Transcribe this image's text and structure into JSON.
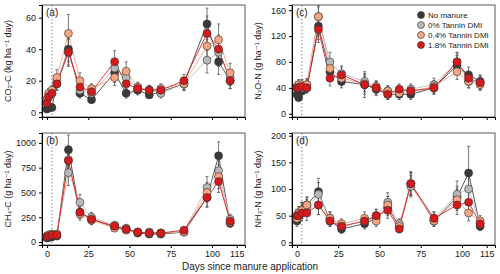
{
  "figure": {
    "x_label": "Days since manure application"
  },
  "chart_data": [
    {
      "type": "line",
      "title": "(a)",
      "y_label": "CO₂-C (kg ha⁻¹ day)",
      "marker": "circle",
      "tick_labels": "y",
      "x": [
        0,
        1,
        3,
        6,
        13,
        20,
        27,
        41,
        48,
        55,
        62,
        69,
        83,
        97,
        104,
        111
      ],
      "xlim": [
        -3,
        120
      ],
      "xticks": [
        0,
        25,
        50,
        75,
        100,
        115
      ],
      "ylim": [
        -3,
        68
      ],
      "yticks": [
        0,
        20,
        40,
        60
      ],
      "vline": 3,
      "series": [
        {
          "name": "No manure",
          "color": "#3a3a3a",
          "values": [
            2,
            3,
            3,
            18,
            40,
            12,
            8,
            25,
            12,
            14,
            11,
            13,
            18,
            56,
            32,
            20
          ],
          "errors": [
            1,
            1,
            1,
            4,
            8,
            3,
            2,
            6,
            3,
            3,
            2,
            3,
            4,
            10,
            8,
            5
          ]
        },
        {
          "name": "0% Tannin DMI",
          "color": "#b8b8b8",
          "values": [
            8,
            10,
            12,
            20,
            38,
            14,
            12,
            28,
            22,
            15,
            14,
            12,
            18,
            33,
            38,
            22
          ],
          "errors": [
            2,
            3,
            3,
            4,
            9,
            4,
            3,
            6,
            5,
            3,
            3,
            3,
            4,
            8,
            9,
            5
          ]
        },
        {
          "name": "0.4% Tannin DMI",
          "color": "#f4a582",
          "values": [
            8,
            12,
            14,
            22,
            50,
            20,
            15,
            22,
            26,
            16,
            14,
            15,
            18,
            42,
            46,
            25
          ],
          "errors": [
            2,
            3,
            3,
            5,
            12,
            5,
            3,
            5,
            6,
            3,
            3,
            3,
            4,
            10,
            10,
            6
          ]
        },
        {
          "name": "1.8% Tannin DMI",
          "color": "#d7191c",
          "values": [
            6,
            10,
            12,
            18,
            38,
            16,
            13,
            32,
            18,
            15,
            14,
            14,
            20,
            50,
            40,
            20
          ],
          "errors": [
            2,
            2,
            3,
            4,
            8,
            4,
            3,
            7,
            4,
            3,
            3,
            3,
            4,
            11,
            9,
            5
          ]
        }
      ]
    },
    {
      "type": "line",
      "title": "(b)",
      "y_label": "CH₄-C (g ha⁻¹ day)",
      "marker": "circle",
      "tick_labels": true,
      "x": [
        0,
        1,
        3,
        6,
        13,
        20,
        27,
        41,
        48,
        55,
        62,
        69,
        83,
        97,
        104,
        111
      ],
      "xlim": [
        -3,
        120
      ],
      "xticks": [
        0,
        25,
        50,
        75,
        100,
        115
      ],
      "ylim": [
        -30,
        1100
      ],
      "yticks": [
        0,
        250,
        500,
        750,
        1000
      ],
      "vline": 3,
      "series": [
        {
          "name": "No manure",
          "color": "#3a3a3a",
          "values": [
            40,
            45,
            50,
            60,
            930,
            300,
            230,
            150,
            130,
            90,
            80,
            80,
            100,
            450,
            870,
            190
          ],
          "errors": [
            10,
            10,
            10,
            15,
            150,
            60,
            50,
            30,
            30,
            20,
            20,
            20,
            25,
            100,
            140,
            40
          ]
        },
        {
          "name": "0% Tannin DMI",
          "color": "#b8b8b8",
          "values": [
            60,
            70,
            80,
            80,
            700,
            400,
            250,
            170,
            140,
            100,
            100,
            90,
            110,
            550,
            720,
            230
          ],
          "errors": [
            15,
            15,
            15,
            20,
            130,
            80,
            50,
            35,
            30,
            25,
            20,
            20,
            25,
            110,
            130,
            50
          ]
        },
        {
          "name": "0.4% Tannin DMI",
          "color": "#f4a582",
          "values": [
            60,
            70,
            75,
            80,
            830,
            280,
            220,
            140,
            120,
            100,
            90,
            90,
            100,
            500,
            660,
            200
          ],
          "errors": [
            15,
            15,
            15,
            20,
            140,
            60,
            45,
            30,
            25,
            20,
            20,
            20,
            25,
            100,
            120,
            45
          ]
        },
        {
          "name": "1.8% Tannin DMI",
          "color": "#d7191c",
          "values": [
            50,
            60,
            70,
            70,
            820,
            300,
            230,
            160,
            130,
            100,
            90,
            90,
            120,
            450,
            610,
            210
          ],
          "errors": [
            10,
            15,
            15,
            15,
            140,
            60,
            50,
            35,
            30,
            20,
            20,
            20,
            25,
            90,
            110,
            45
          ]
        }
      ]
    },
    {
      "type": "line",
      "title": "(c)",
      "y_label": "N₂O-N (g ha⁻¹ day)",
      "marker": "circle",
      "tick_labels": "y",
      "legend": "top-right",
      "x": [
        0,
        1,
        3,
        6,
        13,
        20,
        27,
        41,
        48,
        55,
        62,
        69,
        83,
        97,
        104,
        111
      ],
      "xlim": [
        -3,
        120
      ],
      "xticks": [
        0,
        25,
        50,
        75,
        100,
        115
      ],
      "ylim": [
        -5,
        168
      ],
      "yticks": [
        0,
        40,
        80,
        120,
        160
      ],
      "vline": 3,
      "series": [
        {
          "name": "No manure",
          "color": "#3a3a3a",
          "values": [
            30,
            25,
            35,
            40,
            135,
            65,
            50,
            45,
            38,
            30,
            30,
            30,
            40,
            75,
            60,
            50
          ],
          "errors": [
            6,
            5,
            6,
            8,
            20,
            12,
            10,
            15,
            10,
            8,
            8,
            8,
            10,
            15,
            12,
            10
          ]
        },
        {
          "name": "0% Tannin DMI",
          "color": "#b8b8b8",
          "values": [
            40,
            42,
            40,
            45,
            150,
            80,
            62,
            50,
            40,
            35,
            35,
            38,
            45,
            80,
            50,
            48
          ],
          "errors": [
            8,
            8,
            8,
            9,
            18,
            15,
            12,
            12,
            10,
            8,
            8,
            8,
            10,
            14,
            10,
            10
          ]
        },
        {
          "name": "0.4% Tannin DMI",
          "color": "#f4a582",
          "values": [
            42,
            45,
            45,
            45,
            150,
            70,
            55,
            46,
            42,
            35,
            32,
            35,
            42,
            65,
            50,
            45
          ],
          "errors": [
            8,
            8,
            8,
            9,
            15,
            14,
            11,
            12,
            9,
            8,
            7,
            8,
            9,
            12,
            10,
            9
          ]
        },
        {
          "name": "1.8% Tannin DMI",
          "color": "#d7191c",
          "values": [
            40,
            40,
            42,
            40,
            130,
            55,
            60,
            45,
            40,
            30,
            38,
            35,
            40,
            80,
            55,
            48
          ],
          "errors": [
            7,
            7,
            8,
            8,
            20,
            12,
            12,
            20,
            9,
            8,
            8,
            8,
            9,
            15,
            11,
            10
          ]
        }
      ]
    },
    {
      "type": "line",
      "title": "(d)",
      "y_label": "NH₃-N (g ha⁻¹ day)",
      "marker": "circle",
      "tick_labels": true,
      "x": [
        0,
        1,
        3,
        6,
        13,
        20,
        27,
        41,
        48,
        55,
        62,
        69,
        83,
        97,
        104,
        111
      ],
      "xlim": [
        -3,
        120
      ],
      "xticks": [
        0,
        25,
        50,
        75,
        100,
        115
      ],
      "ylim": [
        -5,
        205
      ],
      "yticks": [
        0,
        50,
        100,
        150,
        200
      ],
      "vline": 3,
      "series": [
        {
          "name": "No manure",
          "color": "#3a3a3a",
          "values": [
            40,
            50,
            60,
            70,
            95,
            40,
            25,
            35,
            45,
            65,
            30,
            110,
            40,
            85,
            130,
            30
          ],
          "errors": [
            10,
            12,
            15,
            15,
            25,
            10,
            8,
            10,
            12,
            15,
            8,
            20,
            10,
            20,
            50,
            8
          ]
        },
        {
          "name": "0% Tannin DMI",
          "color": "#b8b8b8",
          "values": [
            45,
            55,
            60,
            65,
            90,
            45,
            30,
            40,
            50,
            75,
            35,
            105,
            45,
            90,
            100,
            35
          ],
          "errors": [
            10,
            12,
            15,
            15,
            22,
            12,
            8,
            10,
            12,
            18,
            9,
            20,
            12,
            25,
            30,
            9
          ]
        },
        {
          "name": "0.4% Tannin DMI",
          "color": "#f4a582",
          "values": [
            45,
            55,
            60,
            70,
            70,
            45,
            35,
            45,
            40,
            70,
            30,
            110,
            40,
            80,
            55,
            40
          ],
          "errors": [
            10,
            12,
            14,
            15,
            18,
            12,
            9,
            12,
            10,
            16,
            8,
            22,
            10,
            20,
            15,
            10
          ]
        },
        {
          "name": "1.8% Tannin DMI",
          "color": "#d7191c",
          "values": [
            50,
            50,
            55,
            55,
            70,
            40,
            30,
            40,
            50,
            60,
            25,
            110,
            45,
            70,
            75,
            35
          ],
          "errors": [
            12,
            12,
            14,
            14,
            18,
            10,
            8,
            10,
            12,
            15,
            7,
            22,
            12,
            18,
            20,
            9
          ]
        }
      ]
    }
  ]
}
